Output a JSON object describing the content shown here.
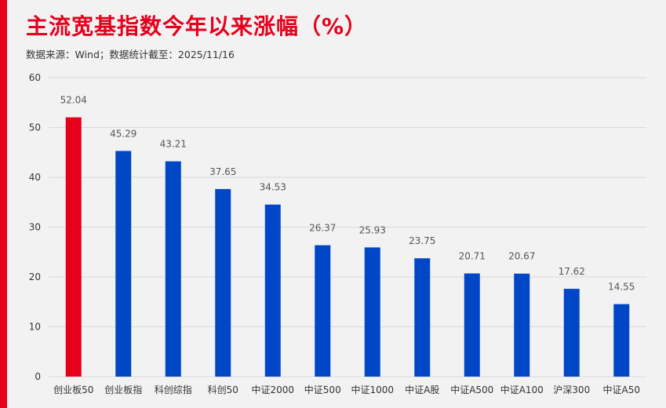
{
  "header": {
    "title": "主流宽基指数今年以来涨幅（%）",
    "source": "数据来源：Wind；数据统计截至：2025/11/16"
  },
  "colors": {
    "accent": "#e5001c",
    "highlight_bar": "#e5001c",
    "bar": "#0047c8",
    "grid": "#d9d9d9",
    "axis_text": "#333333",
    "value_label": "#555555"
  },
  "chart_data": {
    "type": "bar",
    "categories": [
      "创业板50",
      "创业板指",
      "科创综指",
      "科创50",
      "中证2000",
      "中证500",
      "中证1000",
      "中证A股",
      "中证A500",
      "中证A100",
      "沪深300",
      "中证A50"
    ],
    "values": [
      52.04,
      45.29,
      43.21,
      37.65,
      34.53,
      26.37,
      25.93,
      23.75,
      20.71,
      20.67,
      17.62,
      14.55
    ],
    "value_labels": [
      "52.04",
      "45.29",
      "43.21",
      "37.65",
      "34.53",
      "26.37",
      "25.93",
      "23.75",
      "20.71",
      "20.67",
      "17.62",
      "14.55"
    ],
    "highlight_index": 0,
    "ylim": [
      0,
      60
    ],
    "yticks": [
      0,
      10,
      20,
      30,
      40,
      50,
      60
    ],
    "ytick_labels": [
      "0",
      "10",
      "20",
      "30",
      "40",
      "50",
      "60"
    ],
    "grid": true,
    "legend": "none"
  }
}
